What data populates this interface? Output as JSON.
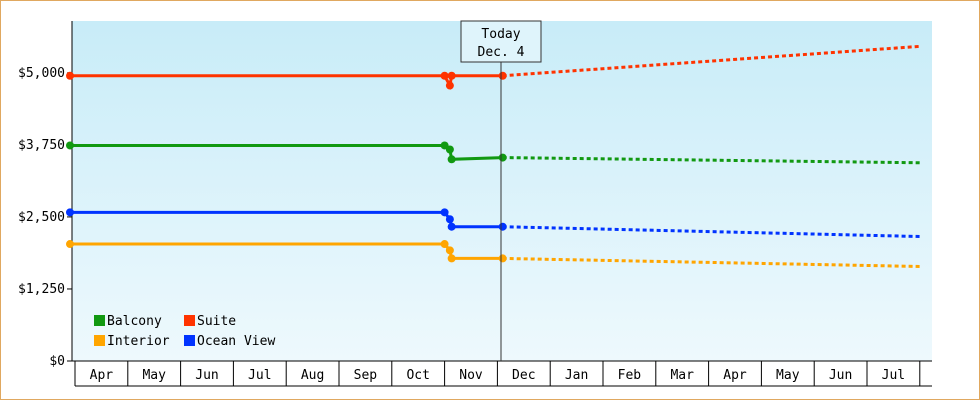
{
  "chart_data": {
    "type": "line",
    "title": "",
    "xlabel": "",
    "ylabel": "",
    "y_ticks": [
      "$0",
      "$1,250",
      "$2,500",
      "$3,750",
      "$5,000"
    ],
    "y_tick_values": [
      0,
      1250,
      2500,
      3750,
      5000
    ],
    "ylim": [
      0,
      5900
    ],
    "x_months": [
      "Apr",
      "May",
      "Jun",
      "Jul",
      "Aug",
      "Sep",
      "Oct",
      "Nov",
      "Dec",
      "Jan",
      "Feb",
      "Mar",
      "Apr",
      "May",
      "Jun",
      "Jul"
    ],
    "today_marker": {
      "line1": "Today",
      "line2": "Dec. 4"
    },
    "grid": false,
    "legend_position": "bottom-left",
    "series": [
      {
        "name": "Suite",
        "color": "#ff3300",
        "history": [
          {
            "x": "Apr 1",
            "y": 4950
          },
          {
            "x": "Nov 1",
            "y": 4950
          },
          {
            "x": "Nov 4",
            "y": 4780
          },
          {
            "x": "Nov 5",
            "y": 4950
          },
          {
            "x": "Dec 4",
            "y": 4950
          }
        ],
        "forecast": [
          {
            "x": "Dec 4",
            "y": 4950
          },
          {
            "x": "Aug 1",
            "y": 5460
          }
        ]
      },
      {
        "name": "Balcony",
        "color": "#119911",
        "history": [
          {
            "x": "Apr 1",
            "y": 3740
          },
          {
            "x": "Nov 1",
            "y": 3740
          },
          {
            "x": "Nov 4",
            "y": 3670
          },
          {
            "x": "Nov 5",
            "y": 3500
          },
          {
            "x": "Dec 4",
            "y": 3530
          }
        ],
        "forecast": [
          {
            "x": "Dec 4",
            "y": 3530
          },
          {
            "x": "Aug 1",
            "y": 3440
          }
        ]
      },
      {
        "name": "Ocean View",
        "color": "#0033ff",
        "history": [
          {
            "x": "Apr 1",
            "y": 2580
          },
          {
            "x": "Nov 1",
            "y": 2580
          },
          {
            "x": "Nov 4",
            "y": 2460
          },
          {
            "x": "Nov 5",
            "y": 2330
          },
          {
            "x": "Dec 4",
            "y": 2330
          }
        ],
        "forecast": [
          {
            "x": "Dec 4",
            "y": 2330
          },
          {
            "x": "Aug 1",
            "y": 2160
          }
        ]
      },
      {
        "name": "Interior",
        "color": "#ffa500",
        "history": [
          {
            "x": "Apr 1",
            "y": 2030
          },
          {
            "x": "Nov 1",
            "y": 2030
          },
          {
            "x": "Nov 4",
            "y": 1920
          },
          {
            "x": "Nov 5",
            "y": 1780
          },
          {
            "x": "Dec 4",
            "y": 1780
          }
        ],
        "forecast": [
          {
            "x": "Dec 4",
            "y": 1780
          },
          {
            "x": "Aug 1",
            "y": 1640
          }
        ]
      }
    ]
  }
}
